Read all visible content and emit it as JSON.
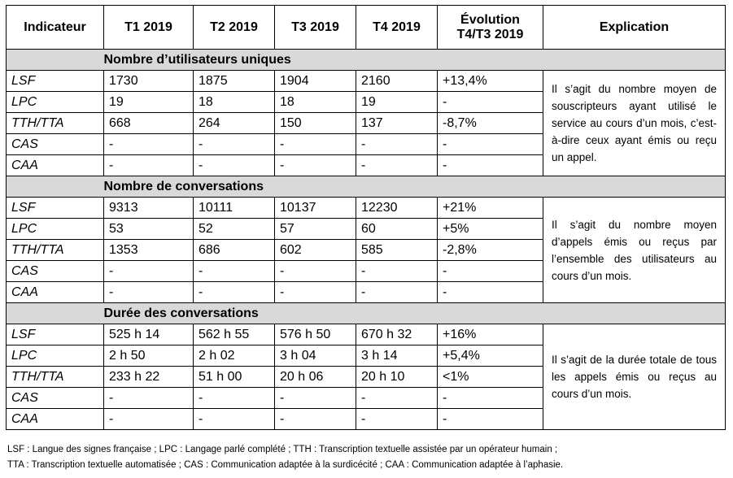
{
  "table": {
    "header": [
      "Indicateur",
      "T1 2019",
      "T2 2019",
      "T3 2019",
      "T4 2019",
      "Évolution\nT4/T3 2019",
      "Explication"
    ],
    "sections": [
      {
        "title": "Nombre d’utilisateurs uniques",
        "rows": [
          [
            "LSF",
            "1730",
            "1875",
            "1904",
            "2160",
            "+13,4%"
          ],
          [
            "LPC",
            "19",
            "18",
            "18",
            "19",
            "-"
          ],
          [
            "TTH/TTA",
            "668",
            "264",
            "150",
            "137",
            "-8,7%"
          ],
          [
            "CAS",
            "-",
            "-",
            "-",
            "-",
            "-"
          ],
          [
            "CAA",
            "-",
            "-",
            "-",
            "-",
            "-"
          ]
        ],
        "explanation": "Il s’agit du nombre moyen de souscripteurs ayant utilisé le service au cours d’un mois, c’est-à-dire ceux ayant émis ou reçu un appel."
      },
      {
        "title": "Nombre de conversations",
        "rows": [
          [
            "LSF",
            "9313",
            "10111",
            "10137",
            "12230",
            "+21%"
          ],
          [
            "LPC",
            "53",
            "52",
            "57",
            "60",
            "+5%"
          ],
          [
            "TTH/TTA",
            "1353",
            "686",
            "602",
            "585",
            "-2,8%"
          ],
          [
            "CAS",
            "-",
            "-",
            "-",
            "-",
            "-"
          ],
          [
            "CAA",
            "-",
            "-",
            "-",
            "-",
            "-"
          ]
        ],
        "explanation": "Il s’agit du nombre moyen d’appels émis ou reçus par l’ensemble des utilisateurs au cours d’un mois."
      },
      {
        "title": "Durée des conversations",
        "rows": [
          [
            "LSF",
            "525 h 14",
            "562 h 55",
            "576 h 50",
            "670 h 32",
            "+16%"
          ],
          [
            "LPC",
            "2 h 50",
            "2 h 02",
            "3 h 04",
            "3 h 14",
            "+5,4%"
          ],
          [
            "TTH/TTA",
            "233 h 22",
            "51 h 00",
            "20 h 06",
            "20 h 10",
            "<1%"
          ],
          [
            "CAS",
            "-",
            "-",
            "-",
            "-",
            "-"
          ],
          [
            "CAA",
            "-",
            "-",
            "-",
            "-",
            "-"
          ]
        ],
        "explanation": "Il s’agit de la durée totale de tous les appels émis ou reçus au cours d’un mois."
      }
    ]
  },
  "footnote": [
    "LSF : Langue des signes française ; LPC : Langage parlé complété ; TTH : Transcription textuelle assistée par un opérateur humain ;",
    "TTA : Transcription textuelle automatisée ; CAS : Communication adaptée à la surdicécité ; CAA : Communication adaptée à l’aphasie."
  ]
}
